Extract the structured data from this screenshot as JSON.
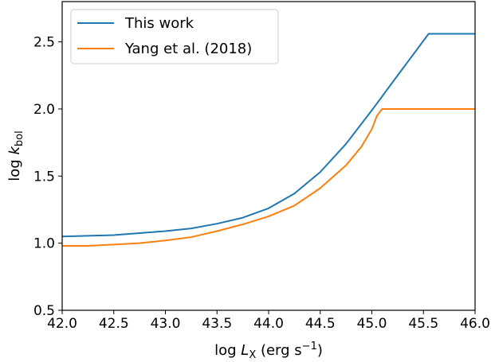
{
  "chart_data": {
    "type": "line",
    "xlabel": {
      "main": "log ",
      "var": "L",
      "sub": "X",
      "unit": " (erg s",
      "sup": "−1",
      "close": ")"
    },
    "ylabel": {
      "main": "log ",
      "var": "k",
      "sub": "bol"
    },
    "xlim": [
      42.0,
      46.0
    ],
    "ylim": [
      0.5,
      2.8
    ],
    "xticks": [
      42.0,
      42.5,
      43.0,
      43.5,
      44.0,
      44.5,
      45.0,
      45.5,
      46.0
    ],
    "xtick_labels": [
      "42.0",
      "42.5",
      "43.0",
      "43.5",
      "44.0",
      "44.5",
      "45.0",
      "45.5",
      "46.0"
    ],
    "yticks": [
      0.5,
      1.0,
      1.5,
      2.0,
      2.5
    ],
    "ytick_labels": [
      "0.5",
      "1.0",
      "1.5",
      "2.0",
      "2.5"
    ],
    "grid": false,
    "legend_position": "top-left",
    "series": [
      {
        "name": "This work",
        "color": "#1f77b4",
        "x": [
          42.0,
          42.5,
          43.0,
          43.25,
          43.5,
          43.75,
          44.0,
          44.25,
          44.5,
          44.75,
          45.0,
          45.25,
          45.55,
          46.0
        ],
        "y": [
          1.05,
          1.06,
          1.09,
          1.11,
          1.145,
          1.19,
          1.26,
          1.37,
          1.53,
          1.74,
          1.99,
          2.25,
          2.56,
          2.56
        ]
      },
      {
        "name": "Yang et al. (2018)",
        "color": "#ff7f0e",
        "x": [
          42.0,
          42.25,
          42.5,
          42.75,
          43.0,
          43.25,
          43.5,
          43.75,
          44.0,
          44.25,
          44.5,
          44.75,
          44.9,
          45.0,
          45.05,
          45.1,
          46.0
        ],
        "y": [
          0.98,
          0.98,
          0.99,
          1.0,
          1.02,
          1.045,
          1.09,
          1.14,
          1.2,
          1.28,
          1.41,
          1.58,
          1.72,
          1.85,
          1.95,
          2.0,
          2.0
        ]
      }
    ]
  }
}
